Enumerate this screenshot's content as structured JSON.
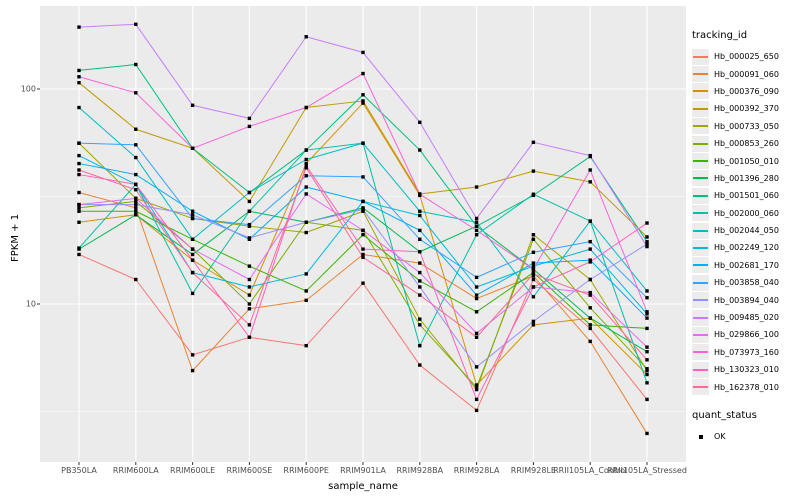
{
  "chart_data": {
    "type": "line",
    "title": "",
    "xlabel": "sample_name",
    "ylabel": "FPKM + 1",
    "y_scale": "log10",
    "y_ticks": [
      10,
      100
    ],
    "y_minor_ticks": [
      3.1623,
      31.623
    ],
    "ylim": [
      1.8,
      243
    ],
    "grid": true,
    "panel_bg": "#EBEBEB",
    "grid_color": "#FFFFFF",
    "marker": "black-square",
    "categories": [
      "PB350LA",
      "RRIM600LA",
      "RRIM600LE",
      "RRIM600SE",
      "RRIM600PE",
      "RRIM901LA",
      "RRIM928BA",
      "RRIM928LA",
      "RRIM928LE",
      "RRII105LA_Control",
      "RRII105LA_Stressed"
    ],
    "legend": {
      "title": "tracking_id",
      "position": "right"
    },
    "quant_legend": {
      "title": "quant_status",
      "items": [
        {
          "label": "OK",
          "marker": "square",
          "color": "#000000"
        }
      ]
    },
    "series": [
      {
        "name": "Hb_000025_650",
        "color": "#F8766D",
        "values": [
          17,
          13,
          5.8,
          7.0,
          6.4,
          12.5,
          5.2,
          3.2,
          13,
          7.7,
          3.6
        ]
      },
      {
        "name": "Hb_000091_060",
        "color": "#EA8331",
        "values": [
          33,
          28,
          4.9,
          9.5,
          10.4,
          17,
          15.5,
          10.6,
          13.5,
          6.7,
          2.5
        ]
      },
      {
        "name": "Hb_000376_090",
        "color": "#D89000",
        "values": [
          24,
          26,
          16,
          11,
          45,
          86,
          32,
          4.2,
          8.0,
          8.6,
          4.7
        ]
      },
      {
        "name": "Hb_000392_370",
        "color": "#C09B00",
        "values": [
          107,
          65,
          53,
          30,
          82,
          88,
          32.5,
          35,
          41.5,
          37,
          20.5
        ]
      },
      {
        "name": "Hb_000733_050",
        "color": "#A3A500",
        "values": [
          56,
          31,
          25,
          23,
          21.5,
          27,
          8.5,
          4.0,
          21,
          13,
          4.9
        ]
      },
      {
        "name": "Hb_000853_260",
        "color": "#7CAE00",
        "values": [
          28,
          30,
          18,
          10,
          24,
          22,
          8.0,
          4.1,
          20,
          9.6,
          5.0
        ]
      },
      {
        "name": "Hb_001050_010",
        "color": "#39B600",
        "values": [
          27,
          27,
          20,
          15,
          11.5,
          21,
          12.8,
          9.2,
          14,
          8.0,
          7.7
        ]
      },
      {
        "name": "Hb_001396_280",
        "color": "#00BB4E",
        "values": [
          18,
          26,
          17,
          27,
          24,
          28,
          17.5,
          23,
          14.5,
          8.6,
          6.0
        ]
      },
      {
        "name": "Hb_001501_060",
        "color": "#00BF7D",
        "values": [
          122,
          130,
          53,
          33,
          52,
          94,
          52,
          23,
          32,
          48.5,
          19.5
        ]
      },
      {
        "name": "Hb_002000_060",
        "color": "#00C1A3",
        "values": [
          18.2,
          36,
          11.2,
          27,
          52,
          56,
          6.4,
          21,
          32.4,
          24.3,
          4.3
        ]
      },
      {
        "name": "Hb_002044_050",
        "color": "#00BFC4",
        "values": [
          82,
          48,
          20,
          33,
          47,
          56,
          27,
          24,
          10.8,
          24.3,
          11.5
        ]
      },
      {
        "name": "Hb_002249_120",
        "color": "#00BAE0",
        "values": [
          49,
          36,
          14,
          12,
          13.8,
          30,
          25.8,
          12,
          15,
          18,
          9.0
        ]
      },
      {
        "name": "Hb_002681_170",
        "color": "#00B0F6",
        "values": [
          45,
          40,
          27,
          20,
          35,
          30,
          22,
          11,
          15.5,
          16,
          8.6
        ]
      },
      {
        "name": "Hb_003858_040",
        "color": "#35A2FF",
        "values": [
          56,
          55,
          25,
          23.4,
          39.5,
          39,
          20,
          13.3,
          17.4,
          19.5,
          10.7
        ]
      },
      {
        "name": "Hb_003894_040",
        "color": "#9590FF",
        "values": [
          29,
          29,
          26,
          20.3,
          24,
          27.5,
          12,
          5.1,
          8.3,
          13,
          19
        ]
      },
      {
        "name": "Hb_009485_020",
        "color": "#C77CFF",
        "values": [
          194,
          200,
          84,
          73,
          175,
          148,
          70,
          25,
          56.5,
          49,
          18.5
        ]
      },
      {
        "name": "Hb_029866_100",
        "color": "#E76BF3",
        "values": [
          29,
          31,
          18,
          13,
          32.5,
          22,
          14,
          7.3,
          12,
          11.3,
          6.3
        ]
      },
      {
        "name": "Hb_073973_160",
        "color": "#FA62DB",
        "values": [
          114,
          96,
          53,
          67,
          82,
          118,
          32.4,
          22,
          14.5,
          42,
          9.2
        ]
      },
      {
        "name": "Hb_130323_010",
        "color": "#FF62BC",
        "values": [
          40,
          36,
          16,
          7.0,
          44,
          18,
          17.5,
          3.6,
          12,
          15.7,
          23.8
        ]
      },
      {
        "name": "Hb_162378_010",
        "color": "#FF6A98",
        "values": [
          42,
          34,
          14,
          8,
          43,
          16.5,
          11,
          7,
          13.8,
          11,
          5.5
        ]
      }
    ]
  }
}
